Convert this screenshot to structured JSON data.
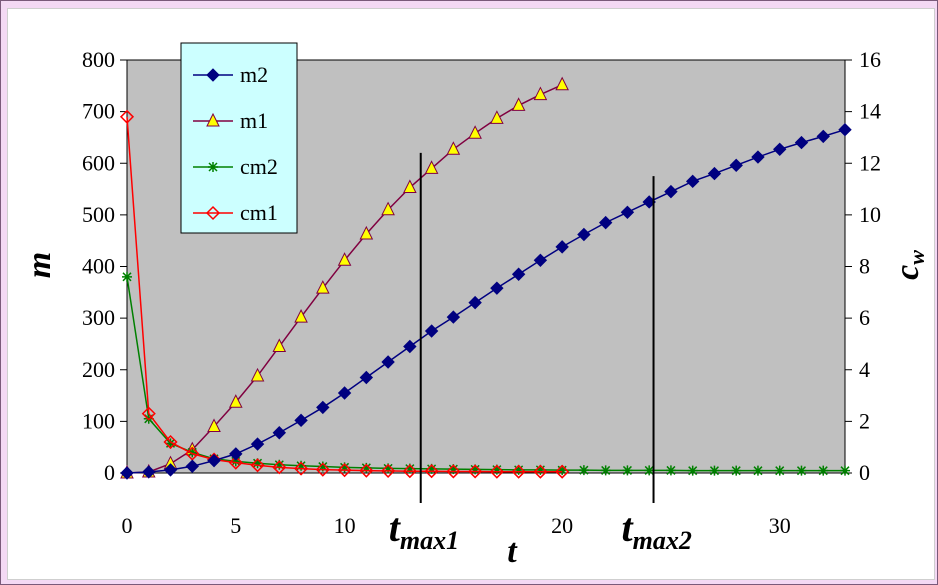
{
  "chart_data": {
    "type": "line",
    "xlabel": "t",
    "ylabel_left": "m",
    "ylabel_right": "c_w",
    "ylabel_right_main": "c",
    "ylabel_right_sub": "w",
    "xlim": [
      0,
      33
    ],
    "ylim_left": [
      0,
      800
    ],
    "ylim_right": [
      0,
      16
    ],
    "x_ticks": [
      0,
      5,
      10,
      20,
      30
    ],
    "y_left_ticks": [
      0,
      100,
      200,
      300,
      400,
      500,
      600,
      700,
      800
    ],
    "y_right_ticks": [
      0,
      2,
      4,
      6,
      8,
      10,
      12,
      14,
      16
    ],
    "grid": false,
    "legend_position": "top-left",
    "colors": {
      "plot_bg": "#c0c0c0",
      "legend_bg": "#ccffff",
      "frame_bg": "#f4d9f4"
    },
    "annotations": [
      {
        "id": "tmax1",
        "main": "t",
        "sub": "max1",
        "x": 13.5,
        "y_top_left": 620
      },
      {
        "id": "tmax2",
        "main": "t",
        "sub": "max2",
        "x": 24.2,
        "y_top_left": 575
      }
    ],
    "series": [
      {
        "name": "m2",
        "axis": "left",
        "color": "#000080",
        "marker": "diamond",
        "x": [
          0,
          1,
          2,
          3,
          4,
          5,
          6,
          7,
          8,
          9,
          10,
          11,
          12,
          13,
          14,
          15,
          16,
          17,
          18,
          19,
          20,
          21,
          22,
          23,
          24,
          25,
          26,
          27,
          28,
          29,
          30,
          31,
          32,
          33
        ],
        "values": [
          0,
          2,
          6,
          13,
          24,
          37,
          56,
          78,
          102,
          127,
          155,
          185,
          215,
          245,
          275,
          302,
          330,
          358,
          385,
          412,
          438,
          462,
          485,
          505,
          525,
          545,
          565,
          580,
          596,
          612,
          627,
          640,
          652,
          665
        ]
      },
      {
        "name": "m1",
        "axis": "left",
        "color": "#800040",
        "marker": "triangle",
        "x": [
          0,
          1,
          2,
          3,
          4,
          5,
          6,
          7,
          8,
          9,
          10,
          11,
          12,
          13,
          14,
          15,
          16,
          17,
          18,
          19,
          20
        ],
        "values": [
          0,
          2,
          18,
          45,
          90,
          137,
          188,
          245,
          302,
          358,
          412,
          463,
          510,
          553,
          590,
          627,
          658,
          687,
          712,
          733,
          752
        ]
      },
      {
        "name": "cm2",
        "axis": "right",
        "color": "#008000",
        "marker": "star",
        "x": [
          0,
          1,
          2,
          3,
          4,
          5,
          6,
          7,
          8,
          9,
          10,
          11,
          12,
          13,
          14,
          15,
          16,
          17,
          18,
          19,
          20,
          21,
          22,
          23,
          24,
          25,
          26,
          27,
          28,
          29,
          30,
          31,
          32,
          33
        ],
        "values": [
          7.6,
          2.1,
          1.15,
          0.8,
          0.55,
          0.45,
          0.38,
          0.32,
          0.28,
          0.25,
          0.22,
          0.2,
          0.18,
          0.17,
          0.16,
          0.15,
          0.14,
          0.13,
          0.12,
          0.12,
          0.11,
          0.11,
          0.1,
          0.1,
          0.1,
          0.1,
          0.09,
          0.09,
          0.09,
          0.09,
          0.09,
          0.09,
          0.09,
          0.09
        ]
      },
      {
        "name": "cm1",
        "axis": "right",
        "color": "#ff0000",
        "marker": "diamond-open",
        "x": [
          0,
          1,
          2,
          3,
          4,
          5,
          6,
          7,
          8,
          9,
          10,
          11,
          12,
          13,
          14,
          15,
          16,
          17,
          18,
          19,
          20
        ],
        "values": [
          13.8,
          2.3,
          1.2,
          0.75,
          0.52,
          0.4,
          0.3,
          0.22,
          0.17,
          0.13,
          0.11,
          0.09,
          0.08,
          0.07,
          0.07,
          0.06,
          0.06,
          0.05,
          0.05,
          0.05,
          0.05
        ]
      }
    ]
  }
}
